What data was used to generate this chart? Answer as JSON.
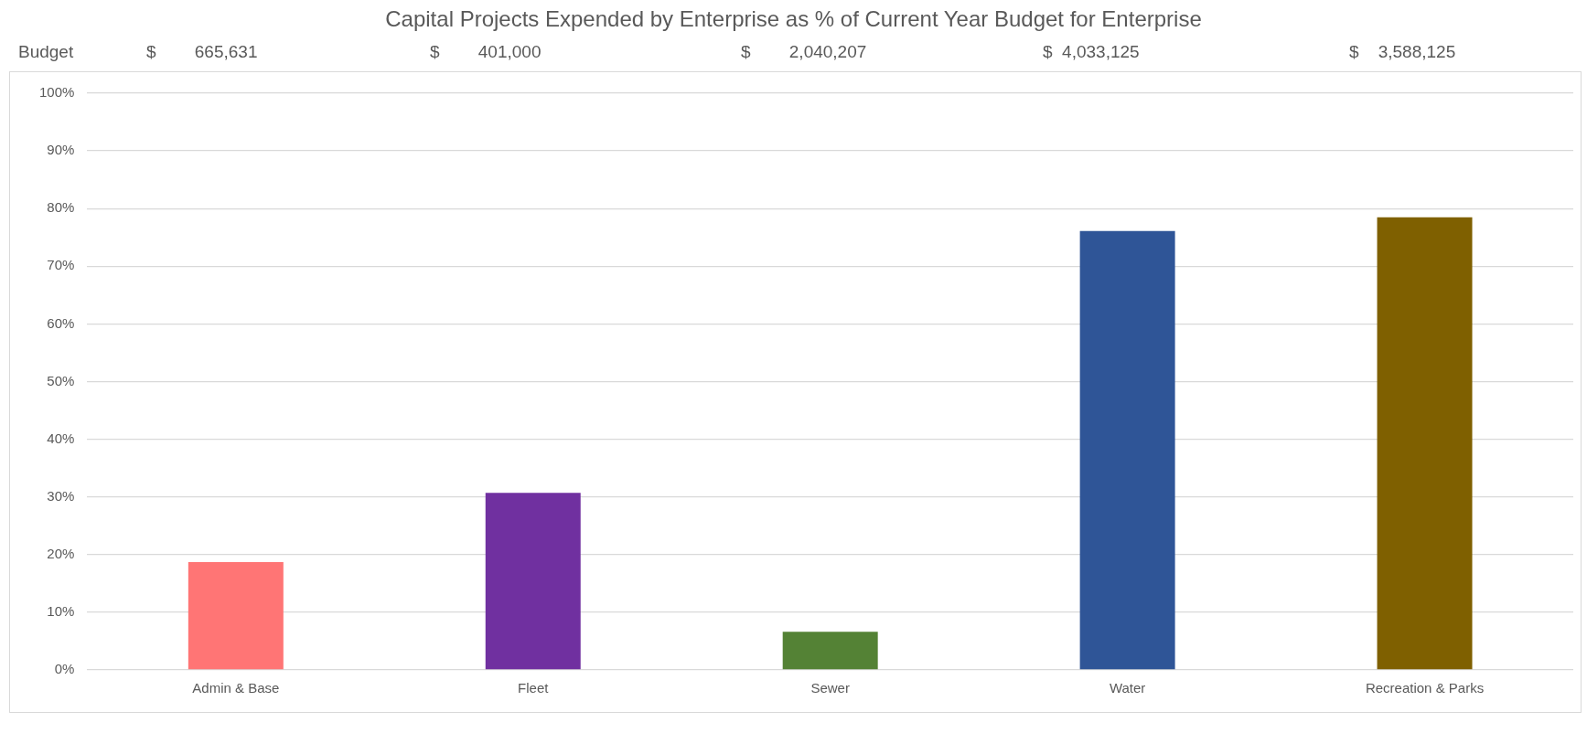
{
  "chart_data": {
    "type": "bar",
    "title": "Capital Projects Expended by Enterprise as % of Current Year Budget for Enterprise",
    "annotations": [
      "Budget",
      "$        665,631",
      "$        401,000",
      "$        2,040,207",
      "$  4,033,125",
      "$    3,588,125"
    ],
    "categories": [
      "Admin & Base",
      "Fleet",
      "Sewer",
      "Water",
      "Recreation & Parks"
    ],
    "values": [
      18.7,
      30.7,
      6.6,
      76.1,
      78.5
    ],
    "colors": [
      "#ff7575",
      "#7030a0",
      "#548235",
      "#2f5597",
      "#7f6000"
    ],
    "ylim": [
      0,
      100
    ],
    "yticks": [
      {
        "value": 0,
        "label": "0%"
      },
      {
        "value": 10,
        "label": "10%"
      },
      {
        "value": 20,
        "label": "20%"
      },
      {
        "value": 30,
        "label": "30%"
      },
      {
        "value": 40,
        "label": "40%"
      },
      {
        "value": 50,
        "label": "50%"
      },
      {
        "value": 60,
        "label": "60%"
      },
      {
        "value": 70,
        "label": "70%"
      },
      {
        "value": 80,
        "label": "80%"
      },
      {
        "value": 90,
        "label": "90%"
      },
      {
        "value": 100,
        "label": "100%"
      }
    ],
    "grid": "y",
    "legend": false
  }
}
